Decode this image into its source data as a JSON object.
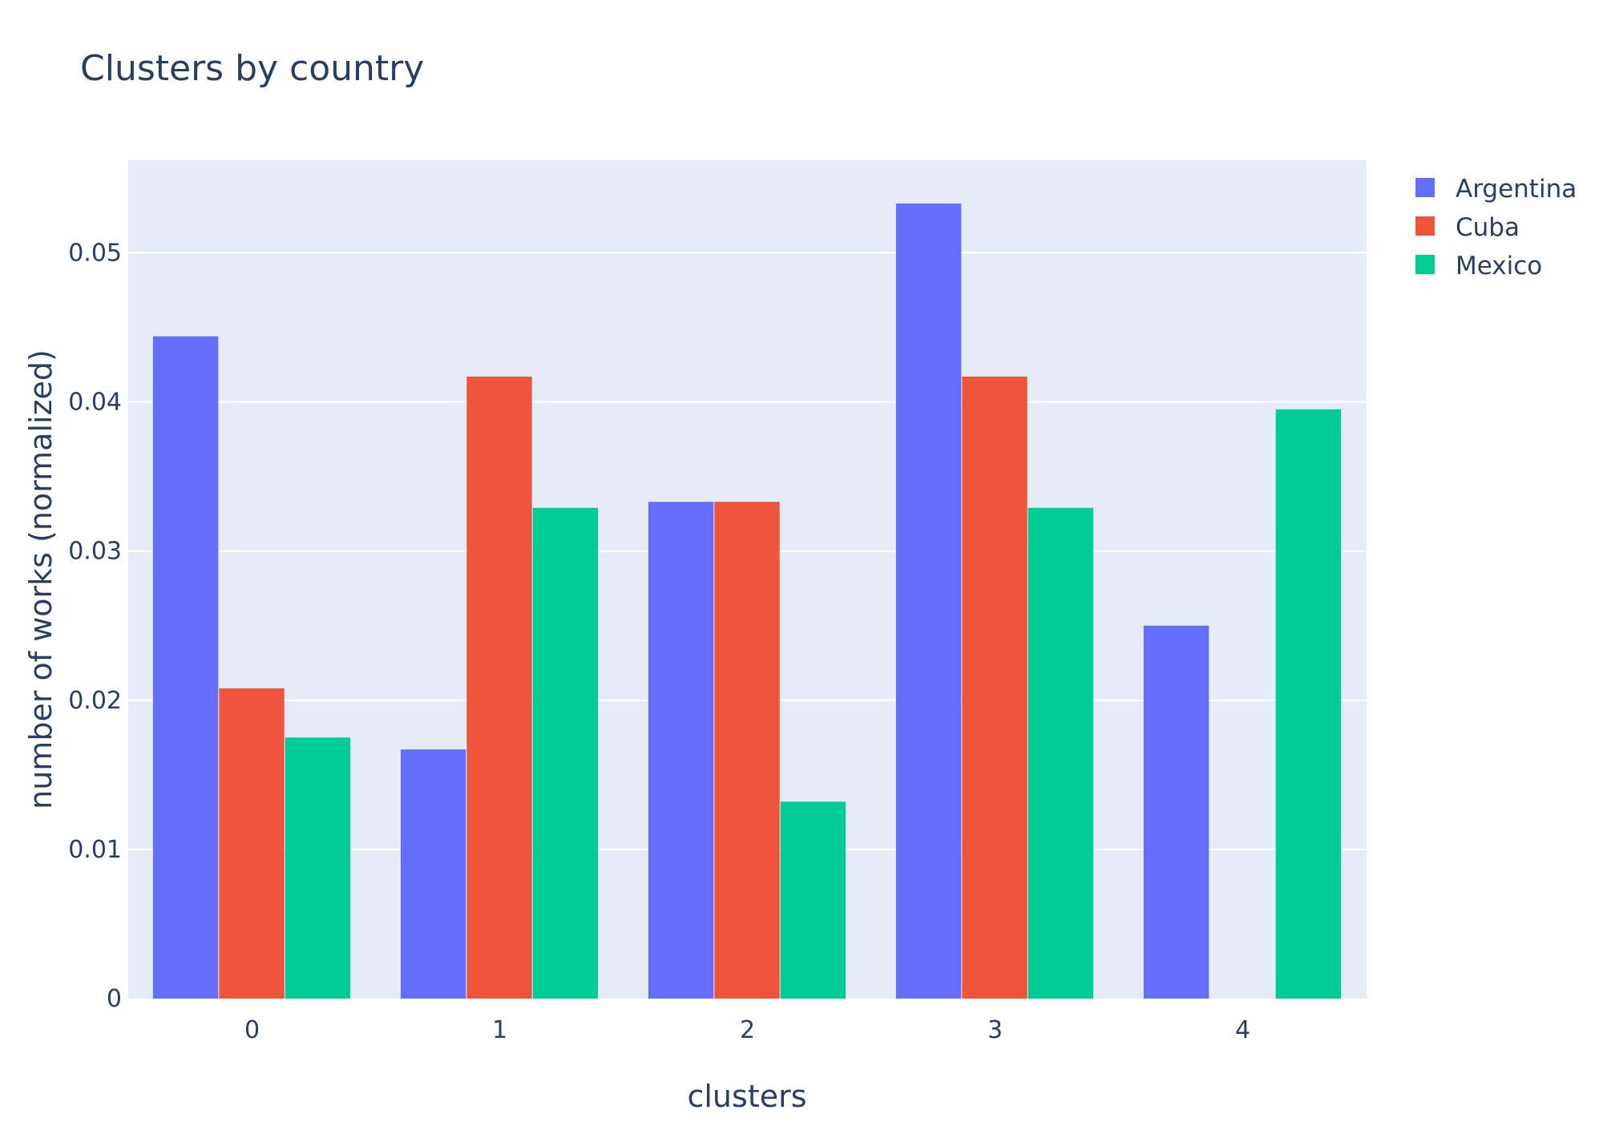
{
  "chart_data": {
    "type": "bar",
    "title": "Clusters by country",
    "xlabel": "clusters",
    "ylabel": "number of works (normalized)",
    "categories": [
      "0",
      "1",
      "2",
      "3",
      "4"
    ],
    "series": [
      {
        "name": "Argentina",
        "color": "#636efa",
        "values": [
          0.0444,
          0.0167,
          0.0333,
          0.0533,
          0.025
        ]
      },
      {
        "name": "Cuba",
        "color": "#ef553b",
        "values": [
          0.0208,
          0.0417,
          0.0333,
          0.0417,
          0
        ]
      },
      {
        "name": "Mexico",
        "color": "#00cc96",
        "values": [
          0.0175,
          0.0329,
          0.0132,
          0.0329,
          0.0395
        ]
      }
    ],
    "ylim": [
      0,
      0.0562
    ],
    "yticks": [
      0,
      0.01,
      0.02,
      0.03,
      0.04,
      0.05
    ],
    "ytick_labels": [
      "0",
      "0.01",
      "0.02",
      "0.03",
      "0.04",
      "0.05"
    ],
    "grid": true,
    "legend_position": "top-right",
    "plot_background": "#e5ecf6",
    "gridline_color": "#ffffff"
  }
}
